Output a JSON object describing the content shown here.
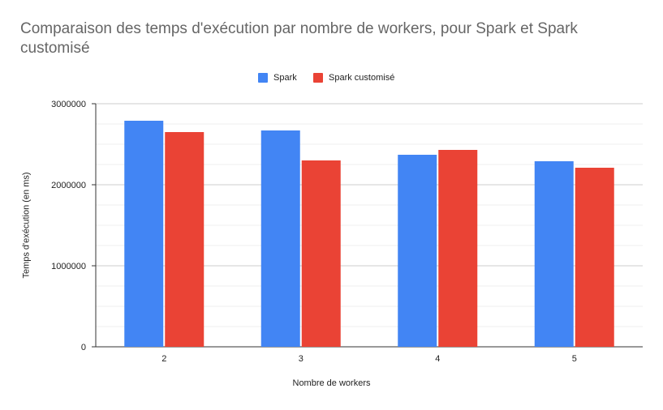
{
  "colors": {
    "spark": "#4285f4",
    "spark_customise": "#ea4335"
  },
  "chart_data": {
    "type": "bar",
    "title": "Comparaison des temps d'exécution par nombre de workers, pour Spark et Spark customisé",
    "xlabel": "Nombre de workers",
    "ylabel": "Temps d'exécution (en ms)",
    "categories": [
      "2",
      "3",
      "4",
      "5"
    ],
    "series": [
      {
        "name": "Spark",
        "values": [
          2790000,
          2670000,
          2370000,
          2290000
        ]
      },
      {
        "name": "Spark customisé",
        "values": [
          2650000,
          2300000,
          2430000,
          2210000
        ]
      }
    ],
    "ylim": [
      0,
      3000000
    ],
    "yticks": [
      "0",
      "1000000",
      "2000000",
      "3000000"
    ],
    "grid": true,
    "legend": "top"
  }
}
